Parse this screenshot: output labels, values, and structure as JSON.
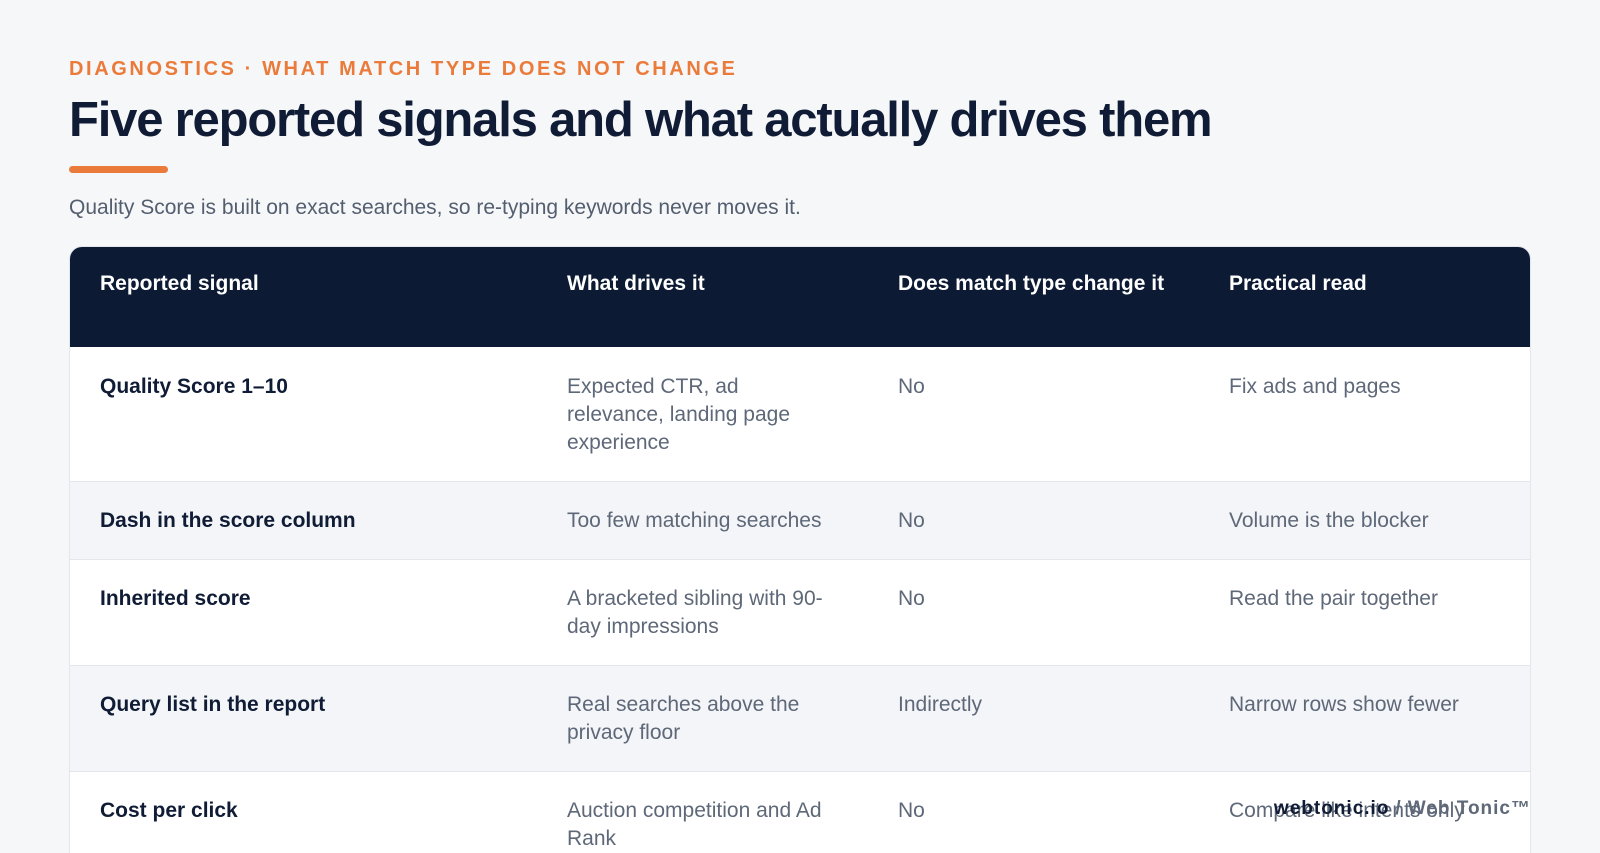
{
  "header": {
    "eyebrow": "DIAGNOSTICS · WHAT MATCH TYPE DOES NOT CHANGE",
    "title": "Five reported signals and what actually drives them",
    "subtitle": "Quality Score is built on exact searches, so re-typing keywords never moves it.",
    "accent_color": "#ea7b3a"
  },
  "table": {
    "columns": [
      "Reported signal",
      "What drives it",
      "Does match type change it",
      "Practical read"
    ],
    "rows": [
      {
        "signal": "Quality Score 1–10",
        "driver": "Expected CTR, ad relevance, landing page experience",
        "match_type": "No",
        "read": "Fix ads and pages"
      },
      {
        "signal": "Dash in the score column",
        "driver": "Too few matching searches",
        "match_type": "No",
        "read": "Volume is the blocker"
      },
      {
        "signal": "Inherited score",
        "driver": "A bracketed sibling with 90-day impressions",
        "match_type": "No",
        "read": "Read the pair together"
      },
      {
        "signal": "Query list in the report",
        "driver": "Real searches above the privacy floor",
        "match_type": "Indirectly",
        "read": "Narrow rows show fewer"
      },
      {
        "signal": "Cost per click",
        "driver": "Auction competition and Ad Rank",
        "match_type": "No",
        "read": "Compare like intents only"
      }
    ]
  },
  "footer": {
    "site": "webtonic.io",
    "separator": "/",
    "brand": "Web Tonic™"
  }
}
